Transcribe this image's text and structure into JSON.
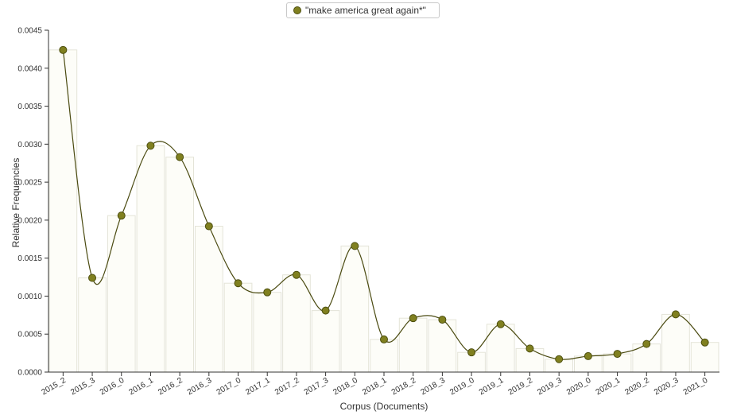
{
  "legend": {
    "label": "\"make america great again*\""
  },
  "colors": {
    "series": "#808020",
    "series_stroke": "#4d4f0f",
    "curve": "#4a4a10",
    "bar_fill": "#fdfdf8",
    "bar_stroke": "#e4e4d8",
    "axis": "#333333"
  },
  "chart_data": {
    "type": "line",
    "xlabel": "Corpus (Documents)",
    "ylabel": "Relative Frequencies",
    "ylim": [
      0,
      0.0045
    ],
    "yticks": [
      "0.0000",
      "0.0005",
      "0.0010",
      "0.0015",
      "0.0020",
      "0.0025",
      "0.0030",
      "0.0035",
      "0.0040",
      "0.0045"
    ],
    "grid": false,
    "legend_position": "top-center",
    "categories": [
      "2015_2",
      "2015_3",
      "2016_0",
      "2016_1",
      "2016_2",
      "2016_3",
      "2017_0",
      "2017_1",
      "2017_2",
      "2017_3",
      "2018_0",
      "2018_1",
      "2018_2",
      "2018_3",
      "2019_0",
      "2019_1",
      "2019_2",
      "2019_3",
      "2020_0",
      "2020_1",
      "2020_2",
      "2020_3",
      "2021_0"
    ],
    "series": [
      {
        "name": "\"make america great again*\"",
        "values": [
          0.00424,
          0.00124,
          0.00206,
          0.00298,
          0.00283,
          0.00192,
          0.00117,
          0.00105,
          0.00128,
          0.00081,
          0.00166,
          0.00043,
          0.00071,
          0.00069,
          0.00026,
          0.00063,
          0.00031,
          0.00017,
          0.00021,
          0.00024,
          0.00037,
          0.00076,
          0.00039
        ]
      }
    ]
  }
}
